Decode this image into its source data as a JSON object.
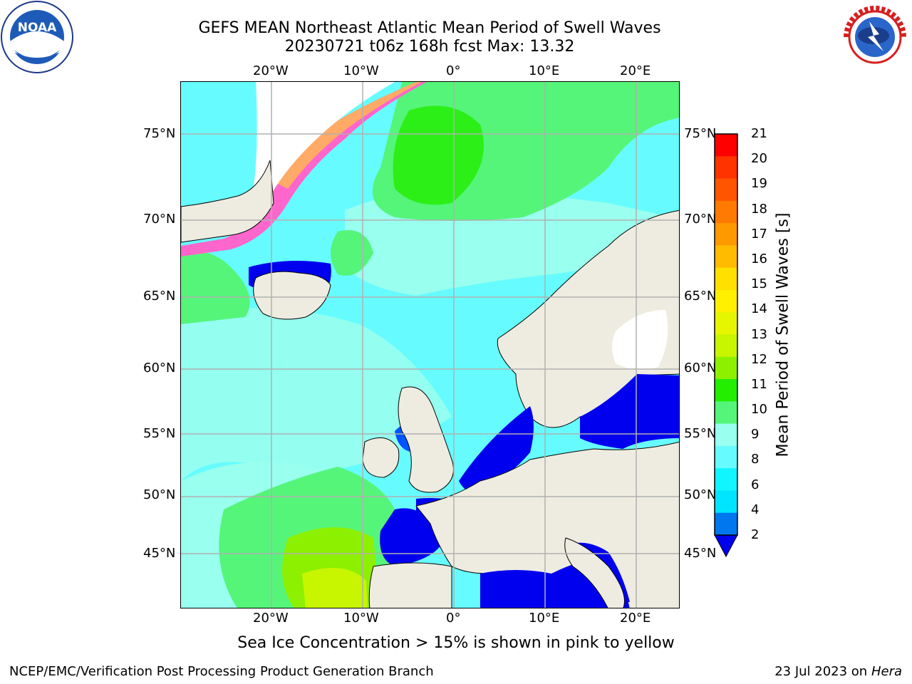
{
  "header": {
    "title_line1": "GEFS MEAN Northeast Atlantic Mean Period of Swell Waves",
    "title_line2": "20230721 t06z 168h fcst   Max: 13.32"
  },
  "logos": {
    "noaa": {
      "text": "NOAA",
      "ring_text": "NATIONAL OCEANIC AND ATMOSPHERIC ADMINISTRATION • U.S. DEPARTMENT OF COMMERCE",
      "icon": "noaa-logo-icon"
    },
    "nws": {
      "ring_text": "NATIONAL WEATHER SERVICE",
      "icon": "nws-logo-icon"
    }
  },
  "map": {
    "projection": "Mercator-like regional map",
    "lon_labels_top": [
      "20°W",
      "10°W",
      "0°",
      "10°E",
      "20°E"
    ],
    "lon_labels_bottom": [
      "20°W",
      "10°W",
      "0°",
      "10°E",
      "20°E"
    ],
    "lat_labels_left": [
      "75°N",
      "70°N",
      "65°N",
      "60°N",
      "55°N",
      "50°N",
      "45°N"
    ],
    "lat_labels_right": [
      "75°N",
      "70°N",
      "65°N",
      "60°N",
      "55°N",
      "50°N",
      "45°N"
    ],
    "gridlines": true,
    "land_color": "#eeece0",
    "coastline_color": "#000000",
    "grid_color": "#b0b0b0"
  },
  "colorbar": {
    "title": "Mean Period of Swell Waves [s]",
    "ticks": [
      "21",
      "20",
      "19",
      "18",
      "17",
      "16",
      "15",
      "14",
      "13",
      "12",
      "11",
      "10",
      "9",
      "8",
      "6",
      "4",
      "2"
    ],
    "colors": [
      "#ff0000",
      "#ff3300",
      "#ff5500",
      "#ff7a00",
      "#ff9900",
      "#ffbb00",
      "#ffe000",
      "#fff000",
      "#e6f500",
      "#c8f500",
      "#8cf000",
      "#22ee00",
      "#55f57a",
      "#99ffee",
      "#66fcff",
      "#11f5ff",
      "#00e5ff",
      "#0077ee"
    ],
    "extend_min_color": "#0000ee"
  },
  "legend_note": "Sea Ice Concentration > 15% is shown in pink to yellow",
  "footer": {
    "credit": "NCEP/EMC/Verification Post Processing Product Generation Branch",
    "date": "23 Jul 2023 on ",
    "machine": "Hera"
  }
}
